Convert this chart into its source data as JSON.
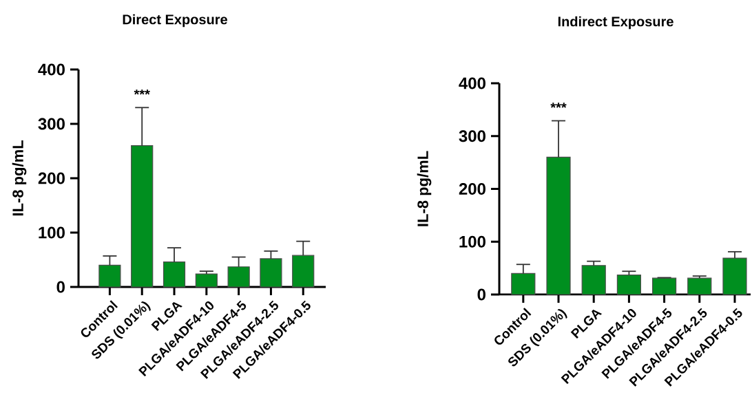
{
  "chart_data": [
    {
      "type": "bar",
      "title": "Direct Exposure",
      "ylabel": "IL-8 pg/mL",
      "categories": [
        "Control",
        "SDS (0.01%)",
        "PLGA",
        "PLGA/eADF4-10",
        "PLGA/eADF4-5",
        "PLGA/eADF4-2.5",
        "PLGA/eADF4-0.5"
      ],
      "values": [
        40,
        260,
        46,
        24,
        37,
        52,
        58
      ],
      "errors": [
        [
          40,
          57
        ],
        [
          260,
          330
        ],
        [
          46,
          72
        ],
        [
          24,
          29
        ],
        [
          37,
          55
        ],
        [
          52,
          66
        ],
        [
          58,
          84
        ]
      ],
      "color": "#008f1f",
      "ylim": [
        0,
        400
      ],
      "yticks": [
        0,
        100,
        200,
        300,
        400
      ],
      "annotations": [
        "***"
      ]
    },
    {
      "type": "bar",
      "title": "Indirect Exposure",
      "ylabel": "IL-8 pg/mL",
      "categories": [
        "Control",
        "SDS (0.01%)",
        "PLGA",
        "PLGA/eADF4-10",
        "PLGA/eADF4-5",
        "PLGA/eADF4-2.5",
        "PLGA/eADF4-0.5"
      ],
      "values": [
        40,
        260,
        55,
        37,
        31,
        31,
        69
      ],
      "errors": [
        [
          40,
          57
        ],
        [
          260,
          329
        ],
        [
          55,
          63
        ],
        [
          37,
          44
        ],
        [
          31,
          32
        ],
        [
          31,
          35
        ],
        [
          69,
          81
        ]
      ],
      "color": "#008f1f",
      "ylim": [
        0,
        400
      ],
      "yticks": [
        0,
        100,
        200,
        300,
        400
      ],
      "annotations": [
        "***"
      ]
    }
  ]
}
